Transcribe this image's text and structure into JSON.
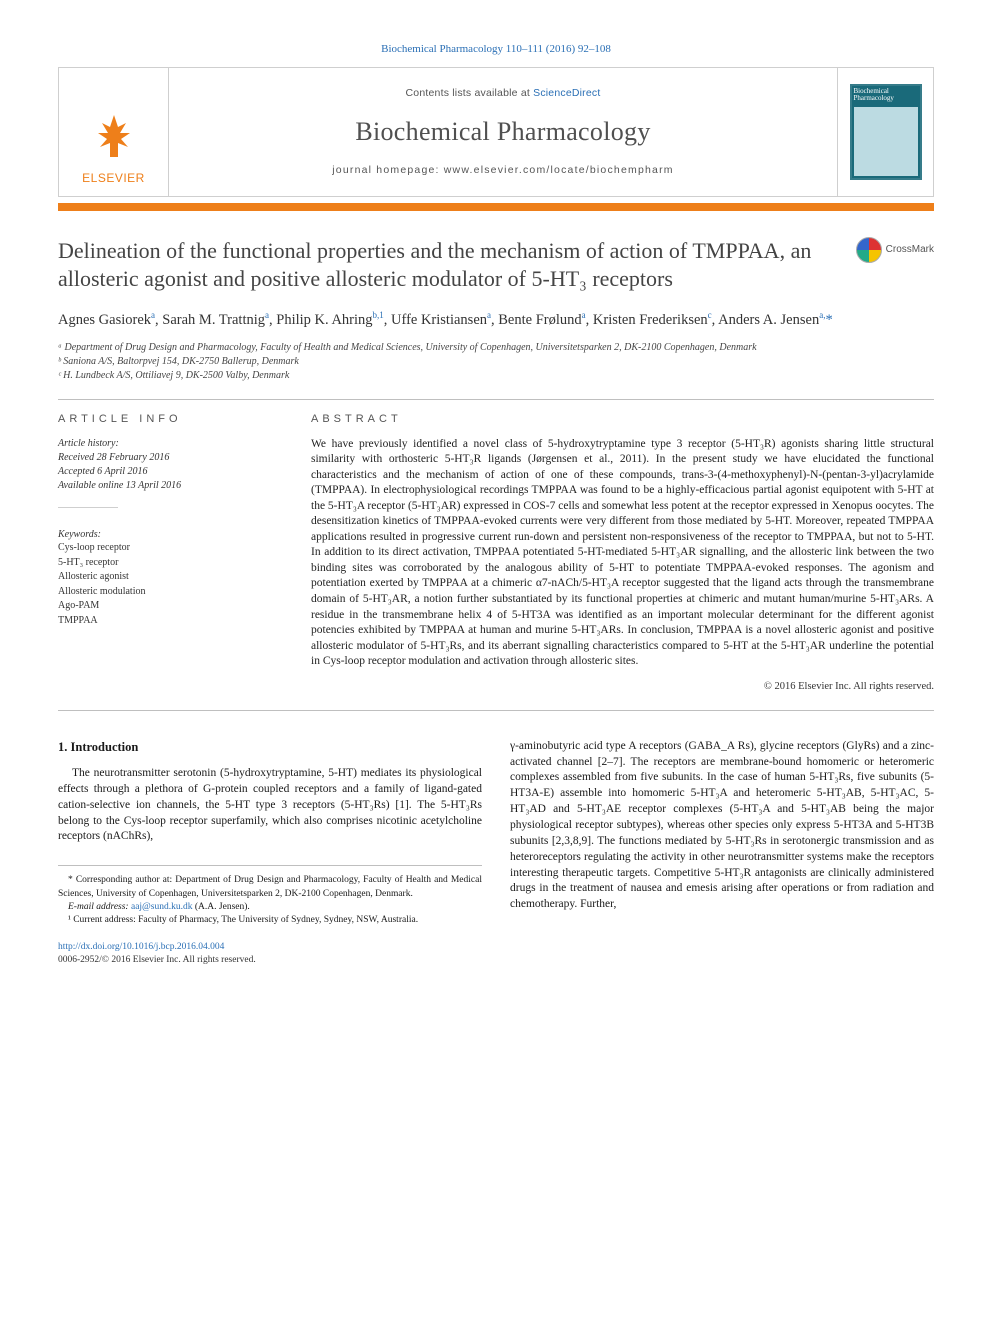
{
  "citation_line": "Biochemical Pharmacology 110–111 (2016) 92–108",
  "masthead": {
    "publisher": "ELSEVIER",
    "contents_prefix": "Contents lists available at ",
    "contents_link": "ScienceDirect",
    "journal": "Biochemical Pharmacology",
    "homepage_prefix": "journal homepage: ",
    "homepage_url": "www.elsevier.com/locate/biochempharm",
    "cover_label": "Biochemical Pharmacology"
  },
  "crossmark_label": "CrossMark",
  "title": "Delineation of the functional properties and the mechanism of action of TMPPAA, an allosteric agonist and positive allosteric modulator of 5-HT₃ receptors",
  "authors_html": "Agnes Gasiorek<sup>a</sup>, Sarah M. Trattnig<sup>a</sup>, Philip K. Ahring<sup>b,1</sup>, Uffe Kristiansen<sup>a</sup>, Bente Frølund<sup>a</sup>, Kristen Frederiksen<sup>c</sup>, Anders A. Jensen<sup>a,</sup><span class='star'>*</span>",
  "affiliations": [
    "ᵃ Department of Drug Design and Pharmacology, Faculty of Health and Medical Sciences, University of Copenhagen, Universitetsparken 2, DK-2100 Copenhagen, Denmark",
    "ᵇ Saniona A/S, Baltorpvej 154, DK-2750 Ballerup, Denmark",
    "ᶜ H. Lundbeck A/S, Ottiliavej 9, DK-2500 Valby, Denmark"
  ],
  "article_info": {
    "heading": "ARTICLE INFO",
    "history_label": "Article history:",
    "received": "Received 28 February 2016",
    "accepted": "Accepted 6 April 2016",
    "online": "Available online 13 April 2016",
    "keywords_label": "Keywords:",
    "keywords": [
      "Cys-loop receptor",
      "5-HT₃ receptor",
      "Allosteric agonist",
      "Allosteric modulation",
      "Ago-PAM",
      "TMPPAA"
    ]
  },
  "abstract": {
    "heading": "ABSTRACT",
    "text": "We have previously identified a novel class of 5-hydroxytryptamine type 3 receptor (5-HT₃R) agonists sharing little structural similarity with orthosteric 5-HT₃R ligands (Jørgensen et al., 2011). In the present study we have elucidated the functional characteristics and the mechanism of action of one of these compounds, trans-3-(4-methoxyphenyl)-N-(pentan-3-yl)acrylamide (TMPPAA). In electrophysiological recordings TMPPAA was found to be a highly-efficacious partial agonist equipotent with 5-HT at the 5-HT₃A receptor (5-HT₃AR) expressed in COS-7 cells and somewhat less potent at the receptor expressed in Xenopus oocytes. The desensitization kinetics of TMPPAA-evoked currents were very different from those mediated by 5-HT. Moreover, repeated TMPPAA applications resulted in progressive current run-down and persistent non-responsiveness of the receptor to TMPPAA, but not to 5-HT. In addition to its direct activation, TMPPAA potentiated 5-HT-mediated 5-HT₃AR signalling, and the allosteric link between the two binding sites was corroborated by the analogous ability of 5-HT to potentiate TMPPAA-evoked responses. The agonism and potentiation exerted by TMPPAA at a chimeric α7-nACh/5-HT₃A receptor suggested that the ligand acts through the transmembrane domain of 5-HT₃AR, a notion further substantiated by its functional properties at chimeric and mutant human/murine 5-HT₃ARs. A residue in the transmembrane helix 4 of 5-HT3A was identified as an important molecular determinant for the different agonist potencies exhibited by TMPPAA at human and murine 5-HT₃ARs. In conclusion, TMPPAA is a novel allosteric agonist and positive allosteric modulator of 5-HT₃Rs, and its aberrant signalling characteristics compared to 5-HT at the 5-HT₃AR underline the potential in Cys-loop receptor modulation and activation through allosteric sites.",
    "copyright": "© 2016 Elsevier Inc. All rights reserved."
  },
  "intro": {
    "heading": "1. Introduction",
    "left": "The neurotransmitter serotonin (5-hydroxytryptamine, 5-HT) mediates its physiological effects through a plethora of G-protein coupled receptors and a family of ligand-gated cation-selective ion channels, the 5-HT type 3 receptors (5-HT₃Rs) [1]. The 5-HT₃Rs belong to the Cys-loop receptor superfamily, which also comprises nicotinic acetylcholine receptors (nAChRs),",
    "right": "γ-aminobutyric acid type A receptors (GABA_A Rs), glycine receptors (GlyRs) and a zinc-activated channel [2–7]. The receptors are membrane-bound homomeric or heteromeric complexes assembled from five subunits. In the case of human 5-HT₃Rs, five subunits (5-HT3A-E) assemble into homomeric 5-HT₃A and heteromeric 5-HT₃AB, 5-HT₃AC, 5-HT₃AD and 5-HT₃AE receptor complexes (5-HT₃A and 5-HT₃AB being the major physiological receptor subtypes), whereas other species only express 5-HT3A and 5-HT3B subunits [2,3,8,9]. The functions mediated by 5-HT₃Rs in serotonergic transmission and as heteroreceptors regulating the activity in other neurotransmitter systems make the receptors interesting therapeutic targets. Competitive 5-HT₃R antagonists are clinically administered drugs in the treatment of nausea and emesis arising after operations or from radiation and chemotherapy. Further,"
  },
  "footnotes": {
    "corr": "* Corresponding author at: Department of Drug Design and Pharmacology, Faculty of Health and Medical Sciences, University of Copenhagen, Universitetsparken 2, DK-2100 Copenhagen, Denmark.",
    "email_label": "E-mail address: ",
    "email": "aaj@sund.ku.dk",
    "email_suffix": " (A.A. Jensen).",
    "addr1": "¹ Current address: Faculty of Pharmacy, The University of Sydney, Sydney, NSW, Australia."
  },
  "footer": {
    "doi": "http://dx.doi.org/10.1016/j.bcp.2016.04.004",
    "issn_line": "0006-2952/© 2016 Elsevier Inc. All rights reserved."
  },
  "colors": {
    "link": "#2a6fb5",
    "orange": "#ee7f1a",
    "rule": "#bfbfbf",
    "text": "#1a1a1a"
  }
}
